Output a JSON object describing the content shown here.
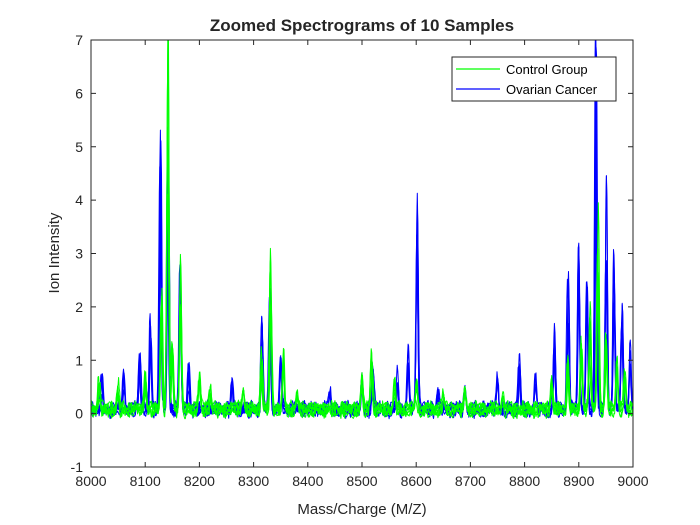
{
  "chart_data": {
    "type": "line",
    "title": "Zoomed Spectrograms of 10 Samples",
    "xlabel": "Mass/Charge (M/Z)",
    "ylabel": "Ion Intensity",
    "xlim": [
      8000,
      9000
    ],
    "ylim": [
      -1,
      7
    ],
    "xticks": [
      "8000",
      "8100",
      "8200",
      "8300",
      "8400",
      "8500",
      "8600",
      "8700",
      "8800",
      "8900",
      "9000"
    ],
    "yticks": [
      "-1",
      "0",
      "1",
      "2",
      "3",
      "4",
      "5",
      "6",
      "7"
    ],
    "grid": false,
    "legend_position": "top-right",
    "series": [
      {
        "name": "Control Group",
        "color": "#00ff00",
        "samples": 5,
        "peaks": [
          [
            8015,
            0.5
          ],
          [
            8050,
            0.5
          ],
          [
            8100,
            0.7
          ],
          [
            8130,
            2.3
          ],
          [
            8142,
            7.0
          ],
          [
            8150,
            1.2
          ],
          [
            8165,
            3.0
          ],
          [
            8200,
            0.6
          ],
          [
            8220,
            0.5
          ],
          [
            8280,
            0.5
          ],
          [
            8315,
            1.0
          ],
          [
            8332,
            3.1
          ],
          [
            8355,
            1.0
          ],
          [
            8380,
            0.3
          ],
          [
            8500,
            0.6
          ],
          [
            8518,
            1.2
          ],
          [
            8560,
            0.5
          ],
          [
            8600,
            0.5
          ],
          [
            8650,
            0.3
          ],
          [
            8690,
            0.4
          ],
          [
            8760,
            0.3
          ],
          [
            8850,
            0.6
          ],
          [
            8880,
            0.9
          ],
          [
            8905,
            1.2
          ],
          [
            8920,
            2.0
          ],
          [
            8935,
            4.0
          ],
          [
            8950,
            1.5
          ],
          [
            8970,
            1.0
          ],
          [
            8985,
            0.6
          ]
        ]
      },
      {
        "name": "Ovarian Cancer",
        "color": "#0000ff",
        "samples": 5,
        "peaks": [
          [
            8020,
            0.6
          ],
          [
            8060,
            0.7
          ],
          [
            8090,
            1.0
          ],
          [
            8110,
            1.75
          ],
          [
            8128,
            5.1
          ],
          [
            8142,
            4.8
          ],
          [
            8165,
            2.6
          ],
          [
            8180,
            0.8
          ],
          [
            8260,
            0.5
          ],
          [
            8315,
            1.65
          ],
          [
            8330,
            2.2
          ],
          [
            8350,
            0.9
          ],
          [
            8440,
            0.3
          ],
          [
            8500,
            0.6
          ],
          [
            8520,
            0.9
          ],
          [
            8565,
            0.8
          ],
          [
            8585,
            1.2
          ],
          [
            8602,
            4.15
          ],
          [
            8640,
            0.4
          ],
          [
            8690,
            0.4
          ],
          [
            8750,
            0.6
          ],
          [
            8790,
            1.1
          ],
          [
            8820,
            0.7
          ],
          [
            8855,
            1.6
          ],
          [
            8880,
            2.5
          ],
          [
            8900,
            3.1
          ],
          [
            8915,
            2.4
          ],
          [
            8932,
            7.0
          ],
          [
            8950,
            4.35
          ],
          [
            8965,
            3.0
          ],
          [
            8980,
            1.9
          ],
          [
            8995,
            1.2
          ]
        ]
      }
    ]
  }
}
